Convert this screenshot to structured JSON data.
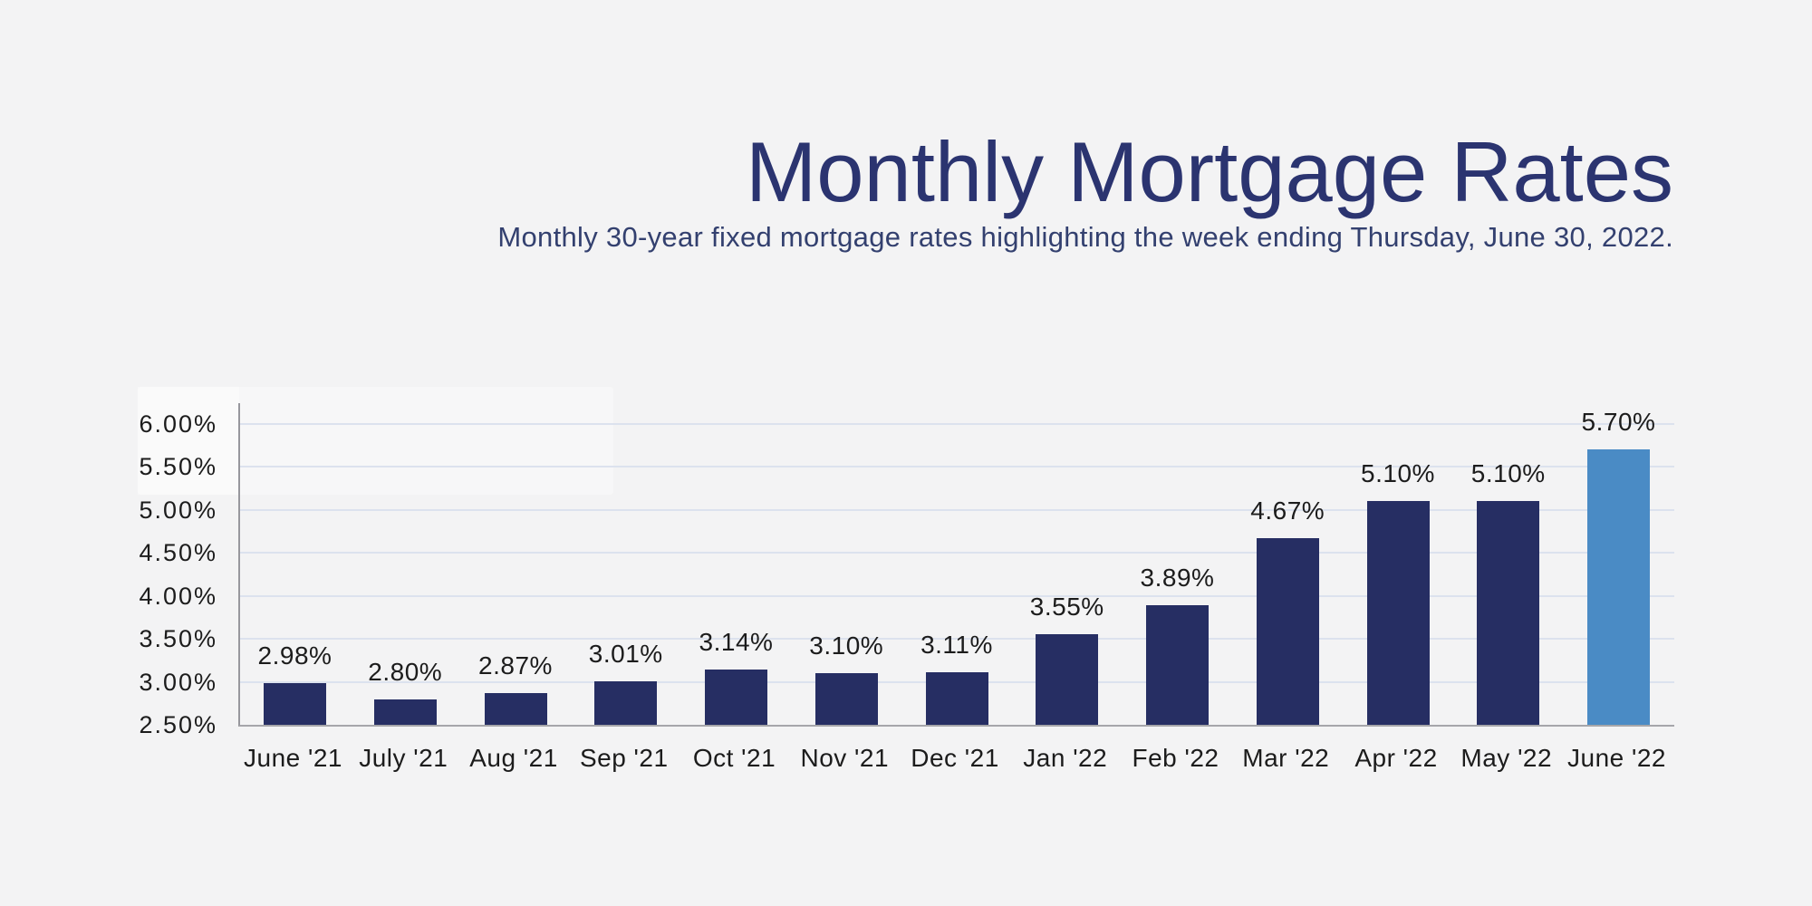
{
  "header": {
    "title": "Monthly Mortgage Rates",
    "subtitle": "Monthly 30-year fixed mortgage rates highlighting the week ending Thursday, June 30, 2022."
  },
  "chart_data": {
    "type": "bar",
    "title": "Monthly Mortgage Rates",
    "subtitle": "Monthly 30-year fixed mortgage rates highlighting the week ending Thursday, June 30, 2022.",
    "categories": [
      "June '21",
      "July '21",
      "Aug '21",
      "Sep '21",
      "Oct '21",
      "Nov '21",
      "Dec '21",
      "Jan '22",
      "Feb '22",
      "Mar '22",
      "Apr '22",
      "May '22",
      "June '22"
    ],
    "values": [
      2.98,
      2.8,
      2.87,
      3.01,
      3.14,
      3.1,
      3.11,
      3.55,
      3.89,
      4.67,
      5.1,
      5.1,
      5.7
    ],
    "value_labels": [
      "2.98%",
      "2.80%",
      "2.87%",
      "3.01%",
      "3.14%",
      "3.10%",
      "3.11%",
      "3.55%",
      "3.89%",
      "4.67%",
      "5.10%",
      "5.10%",
      "5.70%"
    ],
    "y_ticks": [
      {
        "label": "6.00%",
        "value": 6.0
      },
      {
        "label": "5.50%",
        "value": 5.5
      },
      {
        "label": "5.00%",
        "value": 5.0
      },
      {
        "label": "4.50%",
        "value": 4.5
      },
      {
        "label": "4.00%",
        "value": 4.0
      },
      {
        "label": "3.50%",
        "value": 3.5
      },
      {
        "label": "3.00%",
        "value": 3.0
      },
      {
        "label": "2.50%",
        "value": 2.5
      }
    ],
    "ylim": [
      2.5,
      6.0
    ],
    "xlabel": "",
    "ylabel": "",
    "grid": true,
    "legend_position": "none",
    "bar_color": "#262e63",
    "highlight_color": "#4a8bc5",
    "highlight_index": 12,
    "background_color": "#f3f3f4",
    "gridline_color": "#dce2ee",
    "axis_line_color": "#97979d",
    "baseline_color": "#a6a6aa",
    "title_color": "#2b3470",
    "subtitle_color": "#33406f",
    "label_text_color": "#1c1c1c"
  }
}
